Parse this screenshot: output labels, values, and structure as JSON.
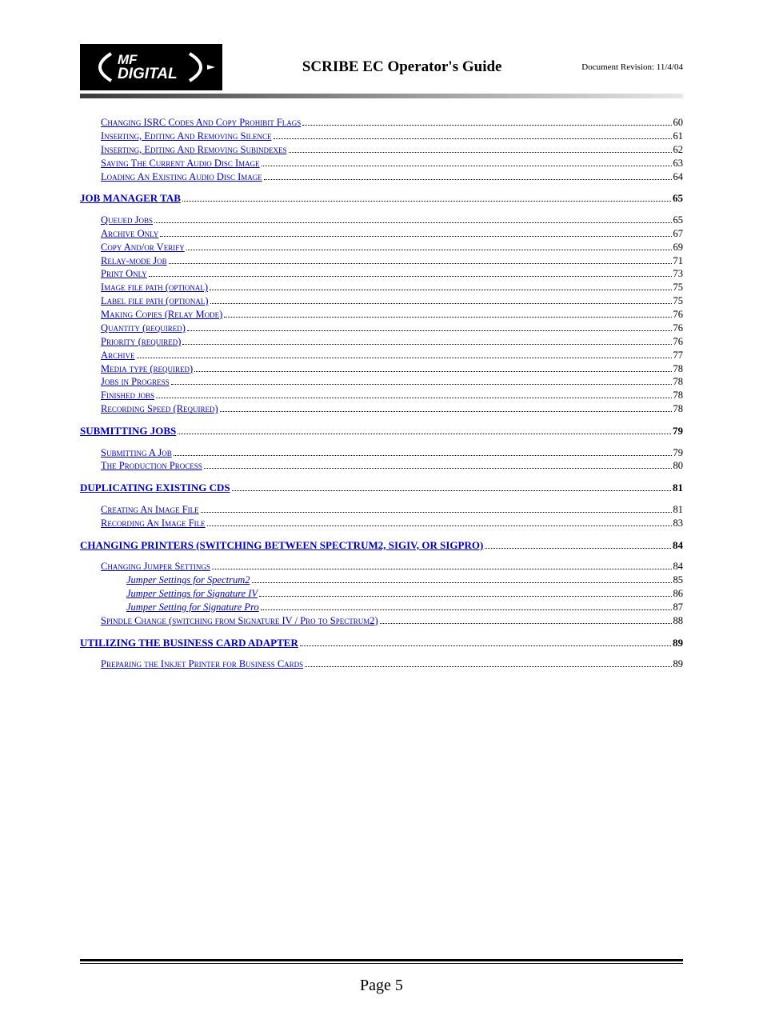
{
  "header": {
    "title": "SCRIBE EC Operator's Guide",
    "revision": "Document Revision: 11/4/04",
    "logo_top": "MF",
    "logo_bottom": "DIGITAL"
  },
  "colors": {
    "link": "#0000cc",
    "text": "#000000",
    "page_bg": "#ffffff",
    "logo_bg": "#000000",
    "grad_start": "#3a3a3a",
    "grad_end": "#e6e6e6"
  },
  "toc": [
    {
      "label": "Changing ISRC Codes And Copy Prohibit Flags",
      "page": "60",
      "level": 1,
      "style": "sc"
    },
    {
      "label": "Inserting, Editing And Removing Silence",
      "page": "61",
      "level": 1,
      "style": "sc"
    },
    {
      "label": "Inserting, Editing And Removing Subindexes",
      "page": "62",
      "level": 1,
      "style": "sc"
    },
    {
      "label": "Saving The Current Audio Disc Image",
      "page": "63",
      "level": 1,
      "style": "sc"
    },
    {
      "label": "Loading An Existing Audio Disc Image",
      "page": "64",
      "level": 1,
      "style": "sc"
    },
    {
      "gap": true
    },
    {
      "label": "JOB MANAGER TAB",
      "page": "65",
      "level": 0,
      "style": "plain"
    },
    {
      "gap": true
    },
    {
      "label": "Queued Jobs",
      "page": "65",
      "level": 1,
      "style": "sc"
    },
    {
      "label": "Archive Only",
      "page": "67",
      "level": 1,
      "style": "sc"
    },
    {
      "label": "Copy And/or Verify",
      "page": "69",
      "level": 1,
      "style": "sc"
    },
    {
      "label": "Relay-mode Job",
      "page": "71",
      "level": 1,
      "style": "sc"
    },
    {
      "label": "Print Only",
      "page": "73",
      "level": 1,
      "style": "sc"
    },
    {
      "label": "Image file path (optional)",
      "page": "75",
      "level": 1,
      "style": "sc"
    },
    {
      "label": "Label file path (optional)",
      "page": "75",
      "level": 1,
      "style": "sc"
    },
    {
      "label": "Making Copies (Relay Mode)",
      "page": "76",
      "level": 1,
      "style": "sc"
    },
    {
      "label": "Quantity (required)",
      "page": "76",
      "level": 1,
      "style": "sc"
    },
    {
      "label": "Priority (required)",
      "page": "76",
      "level": 1,
      "style": "sc"
    },
    {
      "label": "Archive",
      "page": "77",
      "level": 1,
      "style": "sc"
    },
    {
      "label": "Media type (required)",
      "page": "78",
      "level": 1,
      "style": "sc"
    },
    {
      "label": "Jobs in Progress",
      "page": "78",
      "level": 1,
      "style": "sc"
    },
    {
      "label": "Finished jobs",
      "page": "78",
      "level": 1,
      "style": "sc"
    },
    {
      "label": "Recording Speed (Required)",
      "page": "78",
      "level": 1,
      "style": "sc"
    },
    {
      "gap": true
    },
    {
      "label": "SUBMITTING JOBS",
      "page": "79",
      "level": 0,
      "style": "plain"
    },
    {
      "gap": true
    },
    {
      "label": "Submitting A Job",
      "page": "79",
      "level": 1,
      "style": "sc"
    },
    {
      "label": "The Production Process",
      "page": "80",
      "level": 1,
      "style": "sc"
    },
    {
      "gap": true
    },
    {
      "label": "DUPLICATING EXISTING CDS",
      "page": "81",
      "level": 0,
      "style": "plain"
    },
    {
      "gap": true
    },
    {
      "label": "Creating An Image File",
      "page": "81",
      "level": 1,
      "style": "sc"
    },
    {
      "label": "Recording An Image File",
      "page": "83",
      "level": 1,
      "style": "sc"
    },
    {
      "gap": true
    },
    {
      "label": "CHANGING PRINTERS (SWITCHING BETWEEN SPECTRUM2, SIGIV, OR SIGPRO)",
      "page": "84",
      "level": 0,
      "style": "plain"
    },
    {
      "gap": true
    },
    {
      "label": "Changing Jumper Settings",
      "page": "84",
      "level": 1,
      "style": "sc"
    },
    {
      "label": "Jumper Settings for Spectrum2",
      "page": "85",
      "level": 2,
      "style": "italic"
    },
    {
      "label": "Jumper Settings for Signature IV",
      "page": "86",
      "level": 2,
      "style": "italic"
    },
    {
      "label": "Jumper Setting for Signature Pro",
      "page": "87",
      "level": 2,
      "style": "italic"
    },
    {
      "label": "Spindle Change (switching from Signature IV / Pro to Spectrum2)",
      "page": "88",
      "level": 1,
      "style": "sc"
    },
    {
      "gap": true
    },
    {
      "label": "UTILIZING THE BUSINESS CARD ADAPTER",
      "page": "89",
      "level": 0,
      "style": "plain"
    },
    {
      "gap": true
    },
    {
      "label": "Preparing the Inkjet Printer for Business Cards",
      "page": "89",
      "level": 1,
      "style": "sc"
    }
  ],
  "footer": {
    "page_label": "Page 5"
  }
}
